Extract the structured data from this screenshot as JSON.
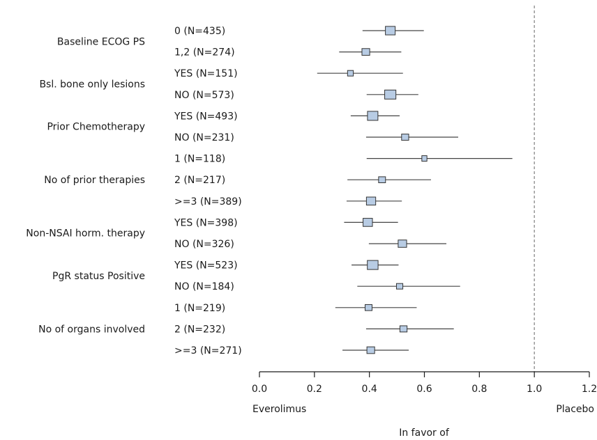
{
  "chart_data": {
    "type": "forest",
    "xlim": [
      0.0,
      1.2
    ],
    "ticks": [
      0.0,
      0.2,
      0.4,
      0.6,
      0.8,
      1.0,
      1.2
    ],
    "tick_labels": [
      "0.0",
      "0.2",
      "0.4",
      "0.6",
      "0.8",
      "1.0",
      "1.2"
    ],
    "reference_line": 1.0,
    "left_label": "Everolimus",
    "right_label": "Placebo",
    "xlabel": "In favor of",
    "groups": [
      {
        "label": "Baseline ECOG PS",
        "rows": [
          {
            "label": "0 (N=435)",
            "n": 435,
            "est": 0.476,
            "lo": 0.375,
            "hi": 0.598
          },
          {
            "label": "1,2 (N=274)",
            "n": 274,
            "est": 0.387,
            "lo": 0.29,
            "hi": 0.516
          }
        ]
      },
      {
        "label": "Bsl. bone only lesions",
        "rows": [
          {
            "label": "YES (N=151)",
            "n": 151,
            "est": 0.331,
            "lo": 0.21,
            "hi": 0.522
          },
          {
            "label": "NO (N=573)",
            "n": 573,
            "est": 0.476,
            "lo": 0.39,
            "hi": 0.578
          }
        ]
      },
      {
        "label": "Prior Chemotherapy",
        "rows": [
          {
            "label": "YES (N=493)",
            "n": 493,
            "est": 0.412,
            "lo": 0.332,
            "hi": 0.51
          },
          {
            "label": "NO (N=231)",
            "n": 231,
            "est": 0.53,
            "lo": 0.388,
            "hi": 0.723
          }
        ]
      },
      {
        "label": "No of prior therapies",
        "rows": [
          {
            "label": "1 (N=118)",
            "n": 118,
            "est": 0.6,
            "lo": 0.39,
            "hi": 0.92
          },
          {
            "label": "2 (N=217)",
            "n": 217,
            "est": 0.446,
            "lo": 0.32,
            "hi": 0.624
          },
          {
            "label": ">=3 (N=389)",
            "n": 389,
            "est": 0.406,
            "lo": 0.317,
            "hi": 0.518
          }
        ]
      },
      {
        "label": "Non-NSAI horm. therapy",
        "rows": [
          {
            "label": "YES (N=398)",
            "n": 398,
            "est": 0.394,
            "lo": 0.308,
            "hi": 0.504
          },
          {
            "label": "NO (N=326)",
            "n": 326,
            "est": 0.52,
            "lo": 0.398,
            "hi": 0.68
          }
        ]
      },
      {
        "label": "PgR status Positive",
        "rows": [
          {
            "label": "YES (N=523)",
            "n": 523,
            "est": 0.412,
            "lo": 0.335,
            "hi": 0.506
          },
          {
            "label": "NO (N=184)",
            "n": 184,
            "est": 0.51,
            "lo": 0.356,
            "hi": 0.73
          }
        ]
      },
      {
        "label": "No of organs involved",
        "rows": [
          {
            "label": "1 (N=219)",
            "n": 219,
            "est": 0.397,
            "lo": 0.276,
            "hi": 0.572
          },
          {
            "label": "2 (N=232)",
            "n": 232,
            "est": 0.524,
            "lo": 0.388,
            "hi": 0.707
          },
          {
            "label": ">=3 (N=271)",
            "n": 271,
            "est": 0.405,
            "lo": 0.302,
            "hi": 0.543
          }
        ]
      }
    ]
  },
  "colors": {
    "box_fill": "#b8cce4",
    "box_stroke": "#333333",
    "ci_line": "#444444",
    "axis": "#1a1a1a",
    "reference_line": "#888888"
  }
}
